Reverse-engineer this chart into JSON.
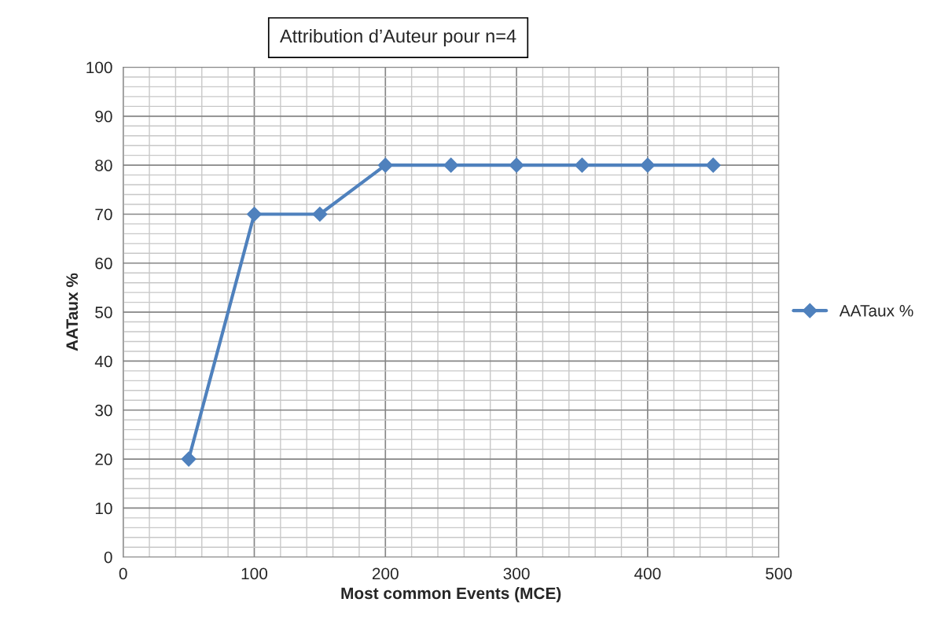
{
  "chart_data": {
    "type": "line",
    "title": "Attribution d’Auteur pour n=4",
    "xlabel": "Most common Events (MCE)",
    "ylabel": "AATaux %",
    "x": [
      50,
      100,
      150,
      200,
      250,
      300,
      350,
      400,
      450
    ],
    "series": [
      {
        "name": "AATaux %",
        "color": "#4f81bd",
        "values": [
          20,
          70,
          70,
          80,
          80,
          80,
          80,
          80,
          80
        ]
      }
    ],
    "xlim": [
      0,
      500
    ],
    "xticks": [
      0,
      100,
      200,
      300,
      400,
      500
    ],
    "ylim": [
      0,
      100
    ],
    "yticks": [
      0,
      10,
      20,
      30,
      40,
      50,
      60,
      70,
      80,
      90,
      100
    ],
    "grid": true,
    "legend": "right",
    "marker": "diamond",
    "line_style": "solid"
  }
}
